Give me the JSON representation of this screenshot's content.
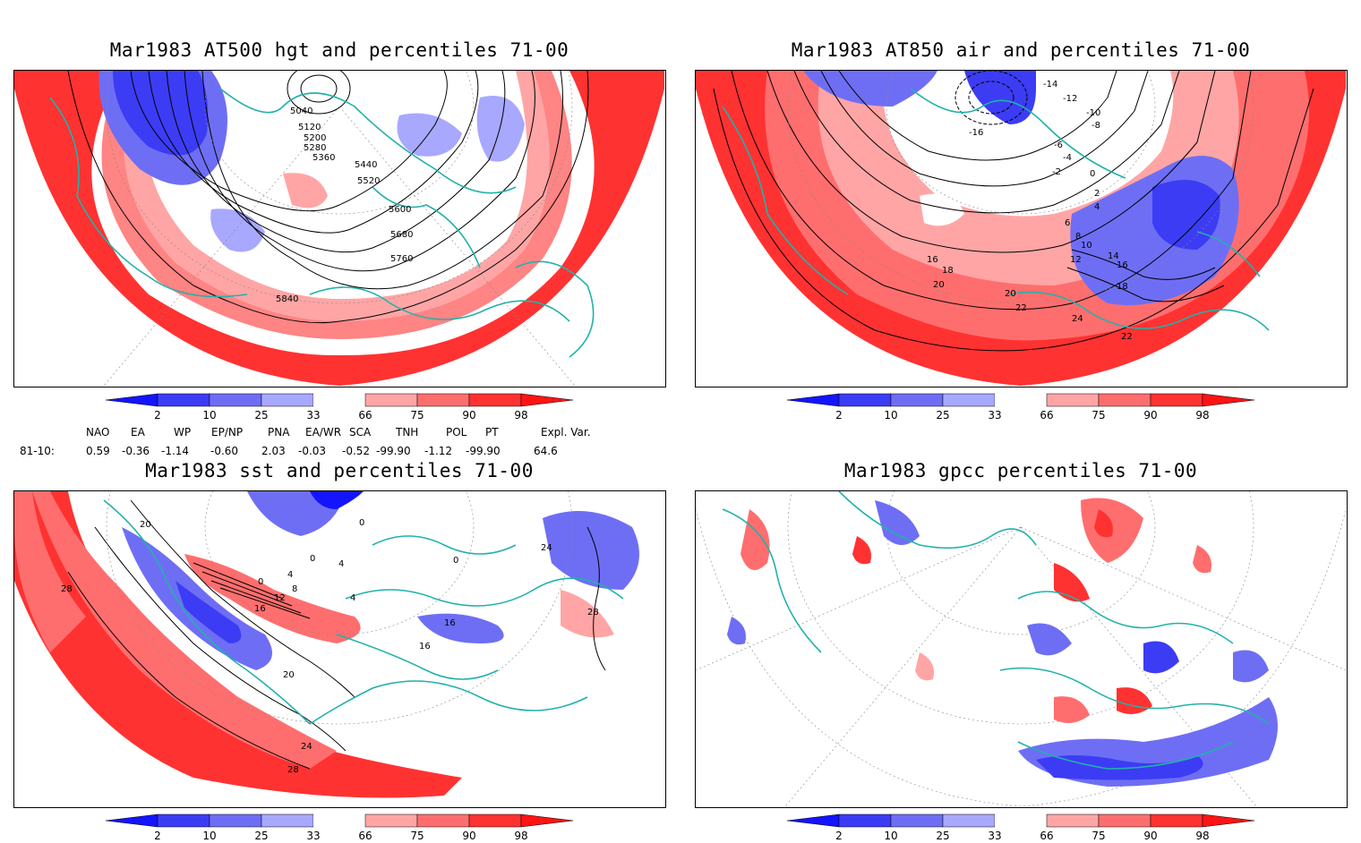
{
  "panels": [
    {
      "id": "hgt500",
      "title": "Mar1983 AT500 hgt and percentiles 71-00",
      "contour_labels": [
        "5040",
        "5120",
        "5200",
        "5280",
        "5360",
        "5440",
        "5520",
        "5600",
        "5680",
        "5760",
        "5840"
      ]
    },
    {
      "id": "air850",
      "title": "Mar1983 AT850 air and percentiles 71-00",
      "contour_labels": [
        "-16",
        "-14",
        "-12",
        "-10",
        "-8",
        "-6",
        "-4",
        "-2",
        "0",
        "2",
        "4",
        "6",
        "8",
        "10",
        "12",
        "14",
        "16",
        "18",
        "20",
        "22",
        "24",
        "16",
        "18",
        "20",
        "22"
      ]
    },
    {
      "id": "sst",
      "title": "Mar1983 sst and percentiles 71-00",
      "contour_labels": [
        "20",
        "28",
        "0",
        "4",
        "8",
        "12",
        "16",
        "20",
        "24",
        "28",
        "0",
        "4",
        "4",
        "16",
        "16",
        "24",
        "28",
        "0",
        "0"
      ]
    },
    {
      "id": "gpcc",
      "title": "Mar1983 gpcc percentiles 71-00",
      "contour_labels": []
    }
  ],
  "colorbar": {
    "ticks": [
      "2",
      "10",
      "25",
      "33",
      "66",
      "75",
      "90",
      "98"
    ],
    "colors": {
      "below2": "#1414ff",
      "b2_10": "#3c3cf5",
      "b10_25": "#6e6ef5",
      "b25_33": "#a8a8ff",
      "b33_66": "#ffffff",
      "b66_75": "#ffa5a5",
      "b75_90": "#ff6e6e",
      "b90_98": "#ff3232",
      "above98": "#ff1414"
    }
  },
  "indices": {
    "headers": [
      "NAO",
      "EA",
      "WP",
      "EP/NP",
      "PNA",
      "EA/WR",
      "SCA",
      "TNH",
      "POL",
      "PT",
      "Expl. Var."
    ],
    "row_label": "81-10:",
    "values": [
      "0.59",
      "-0.36",
      "-1.14",
      "-0.60",
      "2.03",
      "-0.03",
      "-0.52",
      "-99.90",
      "-1.12",
      "-99.90",
      "64.6"
    ]
  },
  "map_colors": {
    "coast": "#20b2aa",
    "contour": "#000000",
    "grid": "#888888"
  }
}
